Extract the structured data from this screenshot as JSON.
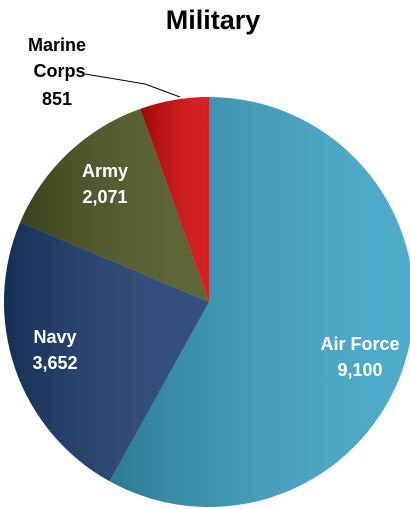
{
  "chart_data": {
    "type": "pie",
    "title": "Military",
    "categories": [
      "Air Force",
      "Navy",
      "Army",
      "Marine Corps"
    ],
    "values": [
      9100,
      3652,
      2071,
      851
    ],
    "value_labels": [
      "9,100",
      "3,652",
      "2,071",
      "851"
    ],
    "colors": [
      "#3aa3c6",
      "#1c3d70",
      "#4b5622",
      "#d40606"
    ]
  }
}
